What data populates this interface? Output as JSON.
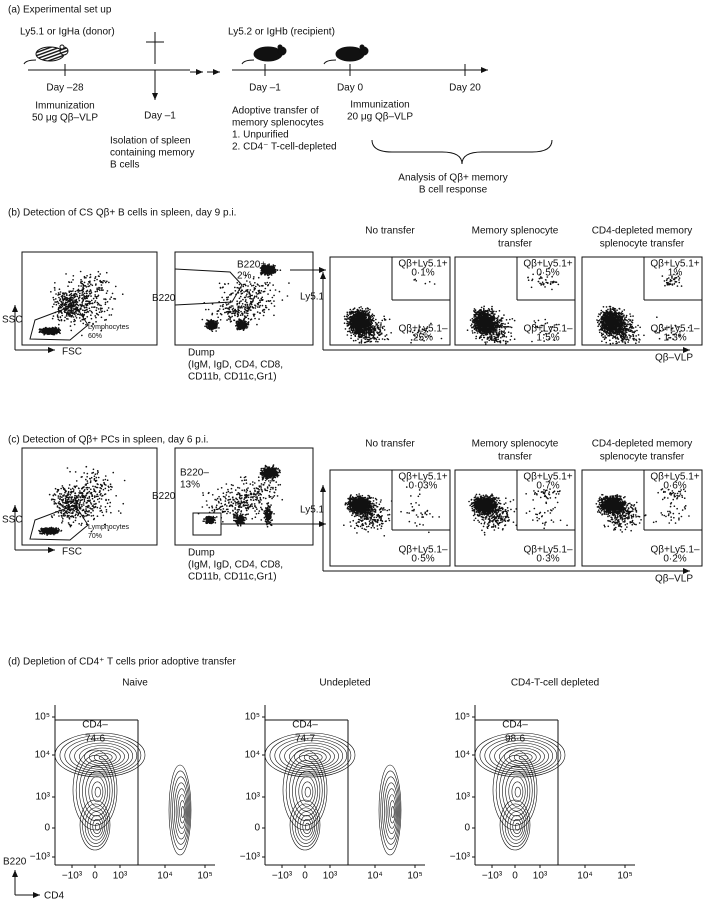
{
  "panel_a": {
    "title": "(a) Experimental set up",
    "donor": "Ly5.1 or IgHa (donor)",
    "recipient": "Ly5.2 or IgHb (recipient)",
    "days": [
      "Day –28",
      "Day –1",
      "Day –1",
      "Day 0",
      "Day 20"
    ],
    "donor_immunization": [
      "Immunization",
      "50 μg Qβ–VLP"
    ],
    "isolation": [
      "Isolation of spleen",
      "containing memory",
      "B cells"
    ],
    "transfer": [
      "Adoptive transfer of",
      "memory splenocytes",
      "1. Unpurified",
      "2. CD4⁻ T-cell-depleted"
    ],
    "recipient_immunization": [
      "Immunization",
      "20 μg Qβ–VLP"
    ],
    "analysis": [
      "Analysis of Qβ+ memory",
      "B cell response"
    ]
  },
  "panel_b": {
    "title": "(b) Detection of CS Qβ+ B cells in spleen, day 9 p.i.",
    "scatter": {
      "x_label": "FSC",
      "y_label": "SSC",
      "gate": [
        "Lymphocytes",
        "60%"
      ]
    },
    "dump": {
      "y_label": "B220",
      "x_label": [
        "Dump",
        "(IgM, IgD, CD4, CD8,",
        "CD11b, CD11c,Gr1)"
      ],
      "gate": [
        "B220+",
        "2%"
      ]
    },
    "y_label": "Ly5.1",
    "x_label": "Qβ–VLP",
    "plots": [
      {
        "title": [
          "No transfer"
        ],
        "upper": [
          "Qβ+Ly5.1+",
          "0·1%"
        ],
        "lower": [
          "Qβ+Ly5.1–",
          "25%"
        ]
      },
      {
        "title": [
          "Memory splenocyte",
          "transfer"
        ],
        "upper": [
          "Qβ+Ly5.1+",
          "0·5%"
        ],
        "lower": [
          "Qβ+Ly5.1–",
          "1·5%"
        ]
      },
      {
        "title": [
          "CD4-depleted memory",
          "splenocyte transfer"
        ],
        "upper": [
          "Qβ+Ly5.1+",
          "1%"
        ],
        "lower": [
          "Qβ+Ly5.1–",
          "1·3%"
        ]
      }
    ]
  },
  "panel_c": {
    "title": "(c) Detection of Qβ+ PCs in spleen, day 6 p.i.",
    "scatter": {
      "x_label": "FSC",
      "y_label": "SSC",
      "gate": [
        "Lymphocytes",
        "70%"
      ]
    },
    "dump": {
      "y_label": "B220",
      "x_label": [
        "Dump",
        "(IgM, IgD, CD4, CD8,",
        "CD11b, CD11c,Gr1)"
      ],
      "gate": [
        "B220–",
        "13%"
      ]
    },
    "y_label": "Ly5.1",
    "x_label": "Qβ–VLP",
    "plots": [
      {
        "title": [
          "No transfer"
        ],
        "upper": [
          "Qβ+Ly5.1+",
          "0·03%"
        ],
        "lower": [
          "Qβ+Ly5.1–",
          "0·5%"
        ]
      },
      {
        "title": [
          "Memory splenocyte",
          "transfer"
        ],
        "upper": [
          "Qβ+Ly5.1+",
          "0·7%"
        ],
        "lower": [
          "Qβ+Ly5.1–",
          "0·3%"
        ]
      },
      {
        "title": [
          "CD4-depleted memory",
          "splenocyte transfer"
        ],
        "upper": [
          "Qβ+Ly5.1+",
          "0·6%"
        ],
        "lower": [
          "Qβ+Ly5.1–",
          "0·2%"
        ]
      }
    ]
  },
  "panel_d": {
    "title": "(d) Depletion of CD4⁺ T cells prior adoptive transfer",
    "y_label": "B220",
    "x_label": "CD4",
    "y_ticks": [
      "10⁵",
      "10⁴",
      "10³",
      "0",
      "−10³"
    ],
    "x_ticks": [
      "−10³",
      "0",
      "10³",
      "10⁴",
      "10⁵"
    ],
    "plots": [
      {
        "title": "Naive",
        "gate": "CD4–",
        "value": "74·6"
      },
      {
        "title": "Undepleted",
        "gate": "CD4–",
        "value": "74·7"
      },
      {
        "title": "CD4-T-cell depleted",
        "gate": "CD4–",
        "value": "98·6"
      }
    ]
  }
}
